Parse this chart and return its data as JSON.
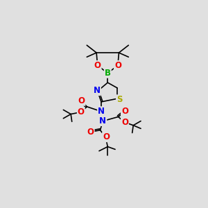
{
  "bg_color": "#e0e0e0",
  "atom_colors": {
    "N": "#0000ee",
    "O": "#ee0000",
    "S": "#aaaa00",
    "B": "#00aa00",
    "C": "#000000"
  },
  "bond_color": "#000000",
  "bond_lw": 1.2,
  "font_size_atom": 8.5
}
